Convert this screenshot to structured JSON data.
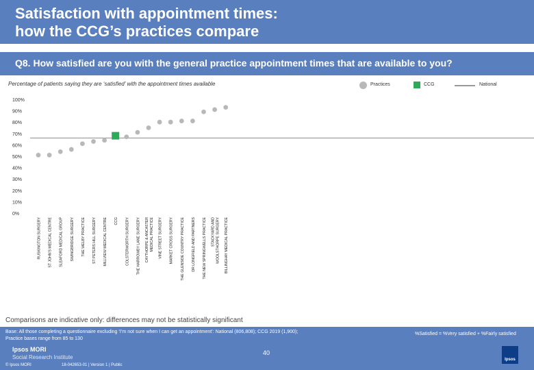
{
  "header": {
    "title": "Satisfaction with appointment times:\nhow the CCG’s practices compare",
    "question": "Q8. How satisfied are you with the general practice appointment times that are available to you?",
    "subtitle": "Percentage of patients saying they are ‘satisfied’ with the appointment times available"
  },
  "legend": {
    "practices": "Practices",
    "ccg": "CCG",
    "national": "National"
  },
  "colors": {
    "band": "#5a7fbf",
    "practice_marker": "#b8b8b8",
    "ccg_marker": "#2faa5a",
    "national_line": "#999999"
  },
  "chart_data": {
    "type": "scatter",
    "title": "Percentage of patients saying they are ‘satisfied’ with the appointment times available",
    "ylim": [
      0,
      100
    ],
    "y_ticks": [
      0,
      10,
      20,
      30,
      40,
      50,
      60,
      70,
      80,
      90,
      100
    ],
    "y_tick_labels": [
      "0%",
      "10%",
      "20%",
      "30%",
      "40%",
      "50%",
      "60%",
      "70%",
      "80%",
      "90%",
      "100%"
    ],
    "national_value": 66,
    "categories": [
      "RUSKINGTON SURGERY",
      "ST JOHN'S MEDICAL CENTRE",
      "SLEAFORD MEDICAL GROUP",
      "SWINGBRIDGE SURGERY",
      "THE WELBY PRACTICE",
      "ST PETERS HILL SURGERY",
      "MILLVIEW MEDICAL CENTRE",
      "CCG",
      "COLSTERWORTH SURGERY",
      "THE HARROWBY LANE SURGERY",
      "CAYTHORPE & ANCASTER MEDICAL PRACTICE",
      "VINE STREET SURGERY",
      "MARKET CROSS SURGERY",
      "THE GLENSIDE COUNTRY PRACTICE",
      "DR LONGFIELD AND PARTNERS",
      "THE NEW SPRINGWELLS PRACTICE",
      "STACKYARD AND WOOLSTHORPE SURGERY",
      "BILLINGHAY MEDICAL PRACTICE"
    ],
    "values": [
      51,
      51,
      54,
      56,
      61,
      63,
      64,
      68,
      67,
      71,
      75,
      80,
      80,
      81,
      81,
      89,
      91,
      93
    ],
    "highlight_category": "CCG"
  },
  "footer": {
    "comparisons_note": "Comparisons are indicative only: differences may not be statistically significant",
    "base_line1": "Base: All those completing a questionnaire excluding ‘I’m not sure when I can get an appointment’: National (806,808); CCG 2019 (1,900);",
    "base_line2": "Practice bases range from 85 to 130",
    "formula": "%Satisfied = %Very satisfied + %Fairly satisfied",
    "brand1": "Ipsos MORI",
    "brand2": "Social Research Institute",
    "page_number": "40",
    "copyright": "© Ipsos MORI",
    "job_number": "18-042653-01 | Version 1 | Public",
    "logo_text": "Ipsos"
  }
}
